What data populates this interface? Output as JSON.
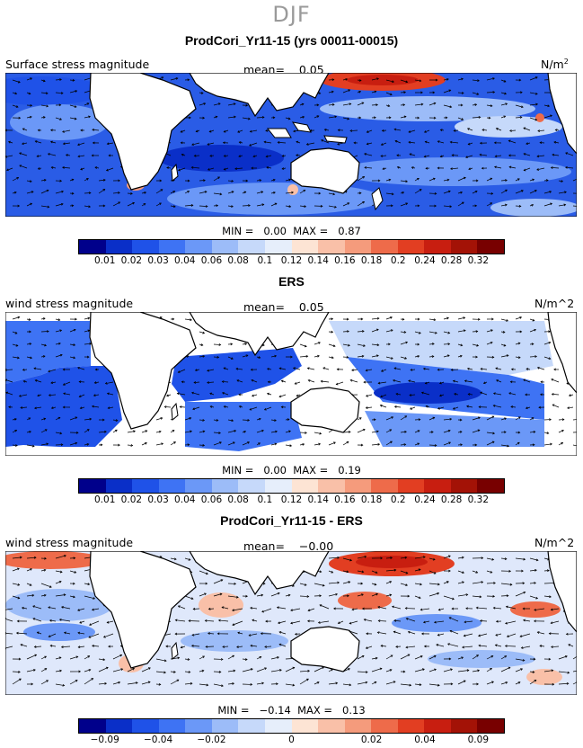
{
  "header": {
    "season": "DJF"
  },
  "colors": [
    "#00008b",
    "#0a2fc8",
    "#1f52e8",
    "#3e73f4",
    "#6b98f7",
    "#9cbcf8",
    "#c6d9fa",
    "#e6eefb",
    "#fde4d4",
    "#f9c0a8",
    "#f59b7c",
    "#ee6b4a",
    "#e23e22",
    "#c81e10",
    "#a31206",
    "#780000"
  ],
  "land_color": "#ffffff",
  "panels": [
    {
      "title": "ProdCori_Yr11-15 (yrs 00011-00015)",
      "variable": "Surface stress magnitude",
      "mean_label": "mean=",
      "mean_value": "0.05",
      "units_text": "N/m",
      "units_sup": "2",
      "min_label": "MIN =",
      "min_value": "0.00",
      "max_label": "MAX =",
      "max_value": "0.87",
      "ticks": [
        "0.01",
        "0.02",
        "0.03",
        "0.04",
        "0.06",
        "0.08",
        "0.1",
        "0.12",
        "0.14",
        "0.16",
        "0.18",
        "0.2",
        "0.24",
        "0.28",
        "0.32"
      ]
    },
    {
      "title": "ERS",
      "variable": "wind stress magnitude",
      "mean_label": "mean=",
      "mean_value": "0.05",
      "units_text": "N/m^2",
      "units_sup": "",
      "min_label": "MIN =",
      "min_value": "0.00",
      "max_label": "MAX =",
      "max_value": "0.19",
      "ticks": [
        "0.01",
        "0.02",
        "0.03",
        "0.04",
        "0.06",
        "0.08",
        "0.1",
        "0.12",
        "0.14",
        "0.16",
        "0.18",
        "0.2",
        "0.24",
        "0.28",
        "0.32"
      ]
    },
    {
      "title": "ProdCori_Yr11-15 - ERS",
      "variable": "wind stress magnitude",
      "mean_label": "mean=",
      "mean_value": "−0.00",
      "units_text": "N/m^2",
      "units_sup": "",
      "min_label": "MIN =",
      "min_value": "−0.14",
      "max_label": "MAX =",
      "max_value": "0.13",
      "ticks": [
        "−0.09",
        "−0.04",
        "−0.02",
        "0",
        "0.02",
        "0.04",
        "0.09"
      ]
    }
  ],
  "chart_data": [
    {
      "type": "heatmap",
      "title": "ProdCori_Yr11-15 (yrs 00011-00015)",
      "variable": "Surface stress magnitude",
      "units": "N/m2",
      "mean": 0.05,
      "min": 0.0,
      "max": 0.87,
      "color_levels": [
        0.01,
        0.02,
        0.03,
        0.04,
        0.06,
        0.08,
        0.1,
        0.12,
        0.14,
        0.16,
        0.18,
        0.2,
        0.24,
        0.28,
        0.32
      ]
    },
    {
      "type": "heatmap",
      "title": "ERS",
      "variable": "wind stress magnitude",
      "units": "N/m^2",
      "mean": 0.05,
      "min": 0.0,
      "max": 0.19,
      "color_levels": [
        0.01,
        0.02,
        0.03,
        0.04,
        0.06,
        0.08,
        0.1,
        0.12,
        0.14,
        0.16,
        0.18,
        0.2,
        0.24,
        0.28,
        0.32
      ]
    },
    {
      "type": "heatmap",
      "title": "ProdCori_Yr11-15 - ERS",
      "variable": "wind stress magnitude",
      "units": "N/m^2",
      "mean": -0.0,
      "min": -0.14,
      "max": 0.13,
      "color_levels": [
        -0.09,
        -0.04,
        -0.02,
        0,
        0.02,
        0.04,
        0.09
      ]
    }
  ]
}
